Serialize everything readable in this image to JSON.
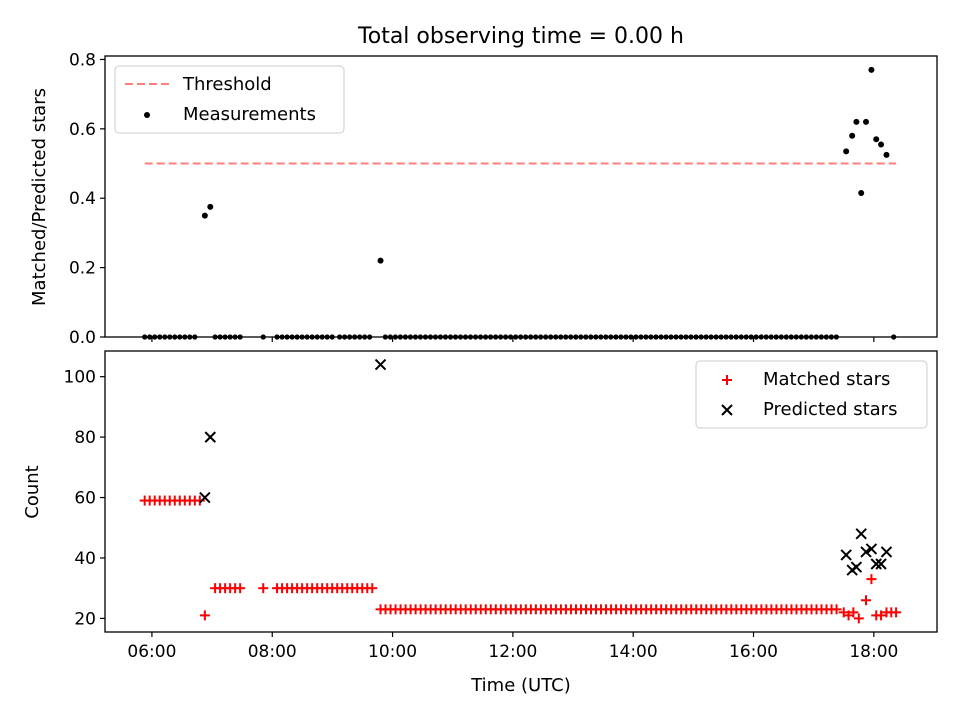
{
  "title": "Total observing time = 0.00 h",
  "xlabel": "Time (UTC)",
  "x_ticks": [
    "06:00",
    "08:00",
    "10:00",
    "12:00",
    "14:00",
    "16:00",
    "18:00"
  ],
  "x_tick_hours": [
    6,
    8,
    10,
    12,
    14,
    16,
    18
  ],
  "xlim_hours": [
    5.22,
    19.05
  ],
  "chart_data": [
    {
      "type": "scatter",
      "ylabel": "Matched/Predicted stars",
      "ylim": [
        0,
        0.81
      ],
      "y_ticks": [
        0.0,
        0.2,
        0.4,
        0.6,
        0.8
      ],
      "y_tick_labels": [
        "0.0",
        "0.2",
        "0.4",
        "0.6",
        "0.8"
      ],
      "legend_position": "top-left",
      "threshold": {
        "name": "Threshold",
        "value": 0.5,
        "x_range_hours": [
          5.88,
          18.37
        ],
        "color": "#ff7f7f",
        "style": "dashed"
      },
      "series": [
        {
          "name": "Measurements",
          "color": "#000000",
          "marker": "dot",
          "zero_segments_hours": [
            [
              5.88,
              6.75
            ],
            [
              7.05,
              7.48
            ],
            [
              8.08,
              9.05
            ],
            [
              9.12,
              9.7
            ],
            [
              9.88,
              17.45
            ],
            [
              18.33,
              18.37
            ]
          ],
          "zero_isolated_hours": [
            7.85
          ],
          "points": [
            {
              "x": 6.88,
              "y": 0.35
            },
            {
              "x": 6.97,
              "y": 0.375
            },
            {
              "x": 9.8,
              "y": 0.22
            },
            {
              "x": 17.54,
              "y": 0.535
            },
            {
              "x": 17.64,
              "y": 0.58
            },
            {
              "x": 17.71,
              "y": 0.62
            },
            {
              "x": 17.79,
              "y": 0.415
            },
            {
              "x": 17.87,
              "y": 0.62
            },
            {
              "x": 17.96,
              "y": 0.77
            },
            {
              "x": 18.04,
              "y": 0.57
            },
            {
              "x": 18.12,
              "y": 0.555
            },
            {
              "x": 18.21,
              "y": 0.525
            }
          ]
        }
      ]
    },
    {
      "type": "scatter",
      "ylabel": "Count",
      "ylim": [
        15.5,
        108.5
      ],
      "y_ticks": [
        20,
        40,
        60,
        80,
        100
      ],
      "y_tick_labels": [
        "20",
        "40",
        "60",
        "80",
        "100"
      ],
      "legend_position": "top-right",
      "series": [
        {
          "name": "Matched stars",
          "color": "#ff0000",
          "marker": "plus",
          "runs": [
            {
              "from_hours": 5.88,
              "to_hours": 6.8,
              "y": 59
            },
            {
              "from_hours": 7.05,
              "to_hours": 7.48,
              "y": 30
            },
            {
              "from_hours": 8.08,
              "to_hours": 9.7,
              "y": 30
            },
            {
              "from_hours": 9.8,
              "to_hours": 17.4,
              "y": 23
            }
          ],
          "points": [
            {
              "x": 6.88,
              "y": 21
            },
            {
              "x": 7.85,
              "y": 30
            },
            {
              "x": 17.5,
              "y": 22
            },
            {
              "x": 17.58,
              "y": 21
            },
            {
              "x": 17.66,
              "y": 22
            },
            {
              "x": 17.75,
              "y": 20
            },
            {
              "x": 17.87,
              "y": 26
            },
            {
              "x": 17.96,
              "y": 33
            },
            {
              "x": 18.04,
              "y": 21
            },
            {
              "x": 18.12,
              "y": 21
            },
            {
              "x": 18.21,
              "y": 22
            },
            {
              "x": 18.29,
              "y": 22
            },
            {
              "x": 18.37,
              "y": 22
            }
          ]
        },
        {
          "name": "Predicted stars",
          "color": "#000000",
          "marker": "x",
          "points": [
            {
              "x": 6.88,
              "y": 60
            },
            {
              "x": 6.97,
              "y": 80
            },
            {
              "x": 9.8,
              "y": 104
            },
            {
              "x": 17.54,
              "y": 41
            },
            {
              "x": 17.64,
              "y": 36
            },
            {
              "x": 17.71,
              "y": 37
            },
            {
              "x": 17.79,
              "y": 48
            },
            {
              "x": 17.87,
              "y": 42
            },
            {
              "x": 17.96,
              "y": 43
            },
            {
              "x": 18.04,
              "y": 38
            },
            {
              "x": 18.12,
              "y": 38
            },
            {
              "x": 18.21,
              "y": 42
            }
          ]
        }
      ]
    }
  ]
}
